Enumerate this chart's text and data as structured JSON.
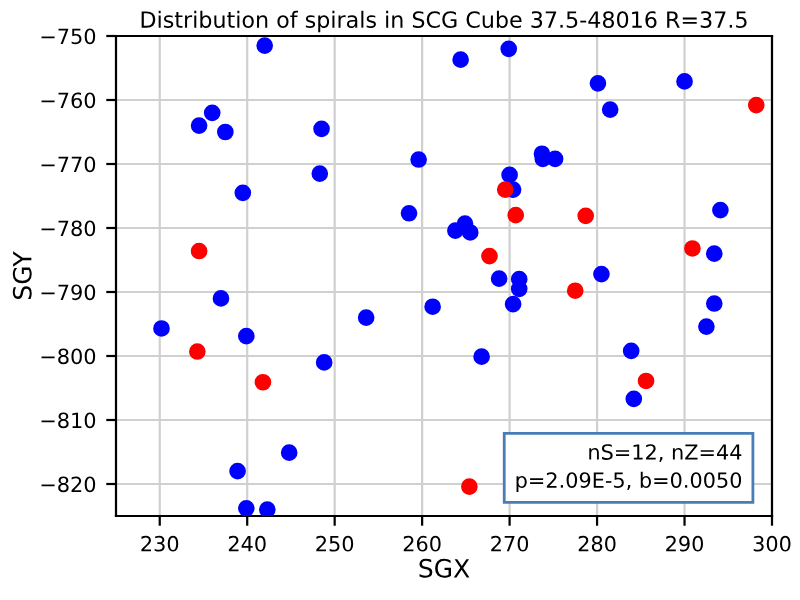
{
  "chart_data": {
    "type": "scatter",
    "title": "Distribution of spirals in SCG Cube 37.5-48016 R=37.5",
    "xlabel": "SGX",
    "ylabel": "SGY",
    "xlim": [
      225,
      300
    ],
    "xticks": [
      230,
      240,
      250,
      260,
      270,
      280,
      290,
      300
    ],
    "ylim": [
      -825,
      -750
    ],
    "yticks": [
      -820,
      -810,
      -800,
      -790,
      -780,
      -770,
      -760,
      -750
    ],
    "grid": true,
    "marker": "circle",
    "annotations": [
      "nS=12, nZ=44\np=2.09E-5, b=0.0050"
    ],
    "series": [
      {
        "color": "#0000ff",
        "x": [
          242,
          234.5,
          236,
          237.5,
          239.5,
          248.5,
          248.3,
          258.5,
          264.4,
          269.9,
          280.1,
          290,
          281.5,
          259.6,
          273.7,
          273.8,
          275.2,
          270,
          270.4,
          294.1,
          263.8,
          264.9,
          265.5,
          293.4,
          268.8,
          271.1,
          271.1,
          280.5,
          261.2,
          270.4,
          293.4,
          292.5,
          266.8,
          283.9,
          284.2,
          230.2,
          237,
          239.9,
          248.8,
          253.6,
          244.8,
          238.9,
          239.9,
          242.3
        ],
        "values": [
          -751.5,
          -764,
          -762,
          -765,
          -774.5,
          -764.5,
          -771.5,
          -777.7,
          -753.7,
          -752,
          -757.4,
          -757.1,
          -761.5,
          -769.3,
          -768.4,
          -769.2,
          -769.2,
          -771.7,
          -774,
          -777.2,
          -780.4,
          -779.3,
          -780.7,
          -784,
          -787.9,
          -788,
          -789.5,
          -787.2,
          -792.3,
          -791.9,
          -791.8,
          -795.4,
          -800.1,
          -799.2,
          -806.7,
          -795.7,
          -791,
          -796.9,
          -801,
          -794,
          -815.1,
          -818,
          -823.8,
          -824
        ]
      },
      {
        "color": "#ff0000",
        "x": [
          234.5,
          234.3,
          241.8,
          267.7,
          269.5,
          270.7,
          278.7,
          277.5,
          290.9,
          298.2,
          285.6,
          265.4
        ],
        "values": [
          -783.6,
          -799.3,
          -804.1,
          -784.4,
          -774,
          -778,
          -778.1,
          -789.8,
          -783.2,
          -760.8,
          -803.9,
          -820.4
        ]
      }
    ]
  }
}
